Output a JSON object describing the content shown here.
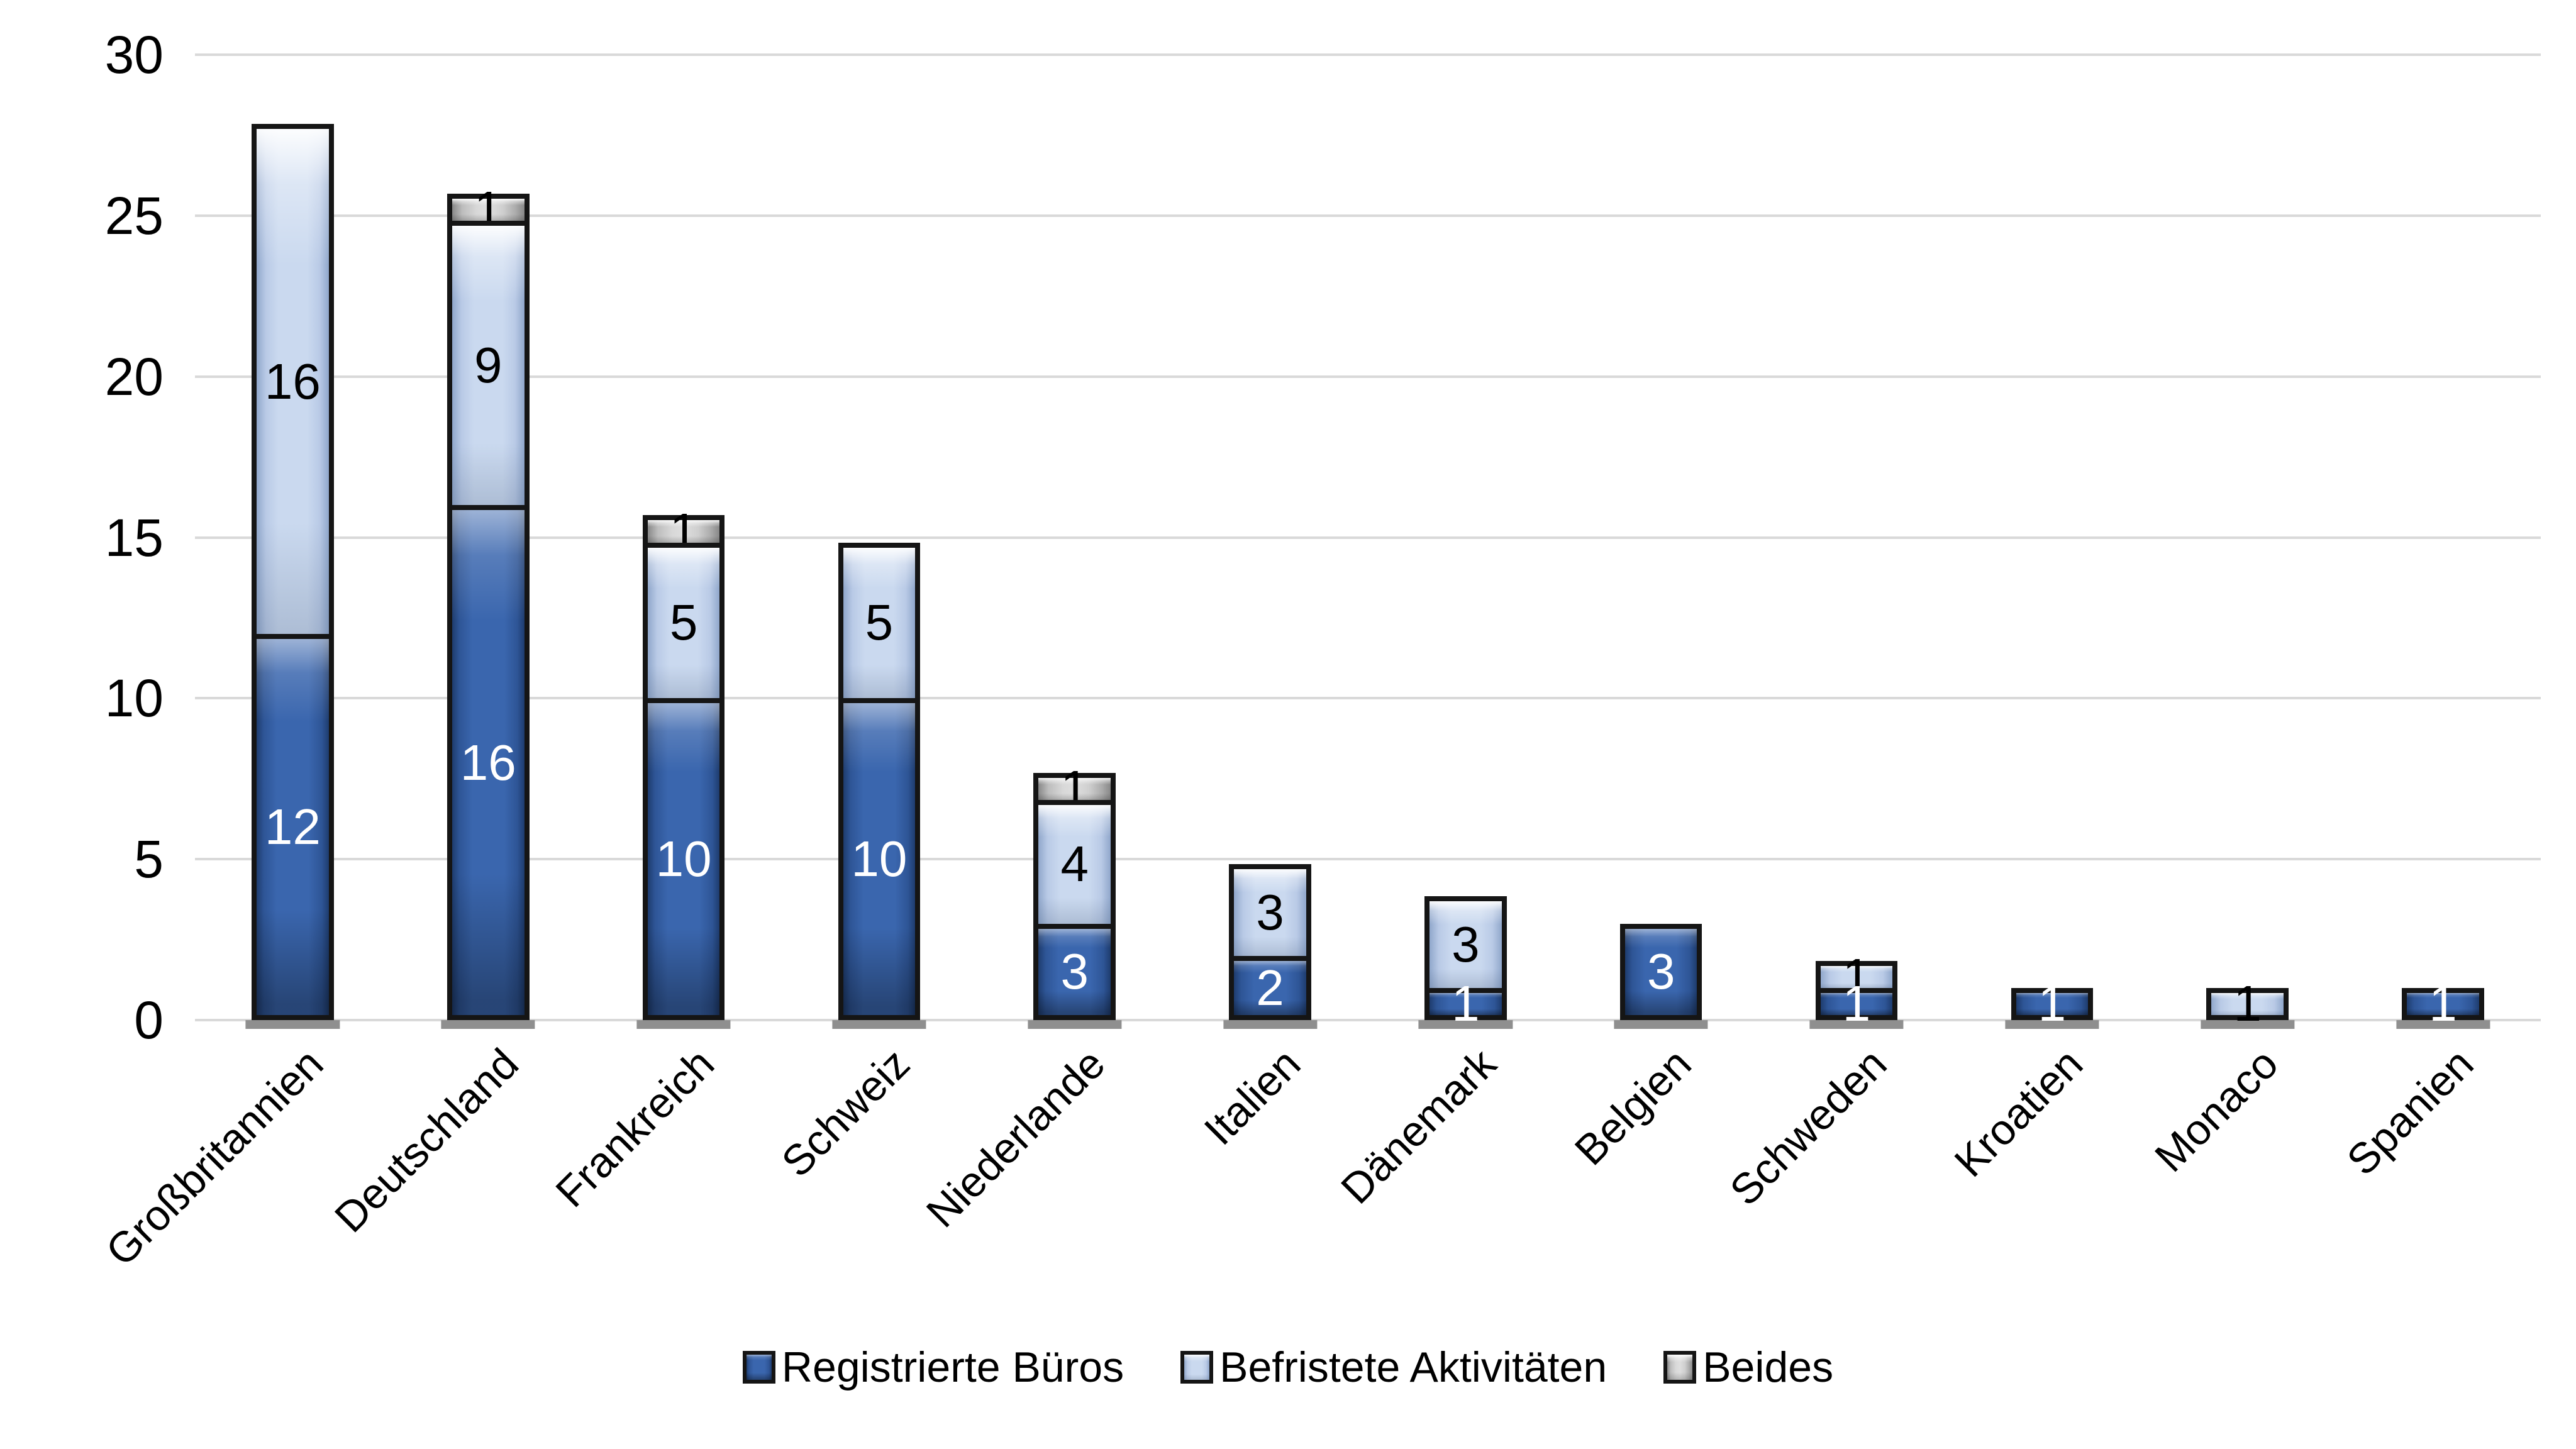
{
  "chart_data": {
    "type": "bar",
    "stacked": true,
    "title": "",
    "xlabel": "",
    "ylabel": "",
    "categories": [
      "Großbritannien",
      "Deutschland",
      "Frankreich",
      "Schweiz",
      "Niederlande",
      "Italien",
      "Dänemark",
      "Belgien",
      "Schweden",
      "Kroatien",
      "Monaco",
      "Spanien"
    ],
    "series": [
      {
        "name": "Registrierte Büros",
        "key": "registrierte-bueros",
        "color": "#35619F",
        "label_color": "#FFFFFF",
        "values": [
          12,
          16,
          10,
          10,
          3,
          2,
          1,
          3,
          1,
          1,
          0,
          1
        ]
      },
      {
        "name": "Befristete Aktivitäten",
        "key": "befristete-aktivitaeten",
        "color": "#CAD9EF",
        "label_color": "#000000",
        "values": [
          16,
          9,
          5,
          5,
          4,
          3,
          3,
          0,
          1,
          0,
          1,
          0
        ]
      },
      {
        "name": "Beides",
        "key": "beides",
        "color": "#D8D8D8",
        "label_color": "#000000",
        "values": [
          0,
          1,
          1,
          0,
          1,
          0,
          0,
          0,
          0,
          0,
          0,
          0
        ]
      }
    ],
    "totals": [
      28,
      26,
      16,
      15,
      8,
      5,
      4,
      3,
      2,
      1,
      1,
      1
    ],
    "ylim": [
      0,
      30
    ],
    "yticks": [
      0,
      5,
      10,
      15,
      20,
      25,
      30
    ],
    "grid": true,
    "gridline_color": "#D9D9D9",
    "axis_text_color": "#000000",
    "background_color": "#FFFFFF",
    "bar_border_color": "#151515",
    "bar_shadow_color": "#8F8F8F",
    "legend_position": "bottom"
  }
}
